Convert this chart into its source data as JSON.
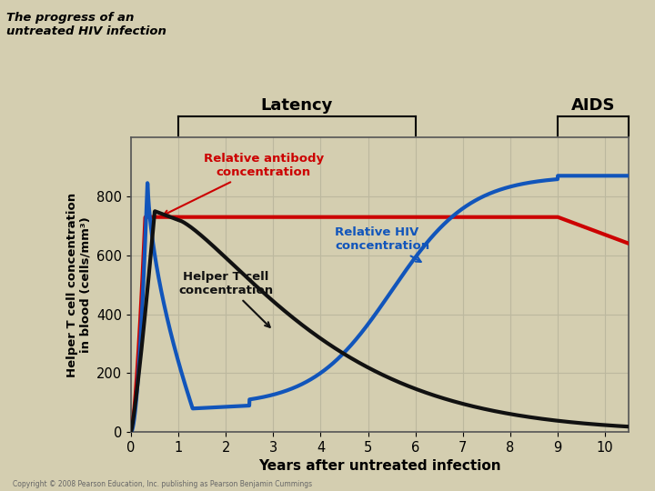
{
  "title_left": "The progress of an\nuntreated HIV infection",
  "latency_label": "Latency",
  "aids_label": "AIDS",
  "xlabel": "Years after untreated infection",
  "ylabel": "Helper T cell concentration\nin blood (cells/mm³)",
  "xlim": [
    0,
    10.5
  ],
  "ylim": [
    0,
    1000
  ],
  "yticks": [
    0,
    200,
    400,
    600,
    800
  ],
  "xticks": [
    0,
    1,
    2,
    3,
    4,
    5,
    6,
    7,
    8,
    9,
    10
  ],
  "bg_color": "#d4ceb0",
  "plot_bg_color": "#d4ceb0",
  "grid_color": "#bcb89e",
  "antibody_color": "#cc0000",
  "hiv_color": "#1155bb",
  "helper_color": "#111111",
  "antibody_label": "Relative antibody\nconcentration",
  "hiv_label": "Relative HIV\nconcentration",
  "helper_label": "Helper T cell\nconcentration",
  "copyright": "Copyright © 2008 Pearson Education, Inc. publishing as Pearson Benjamin Cummings",
  "latency_x_start": 1.0,
  "latency_x_end": 6.0,
  "aids_x_start": 9.0,
  "aids_x_end": 10.5
}
